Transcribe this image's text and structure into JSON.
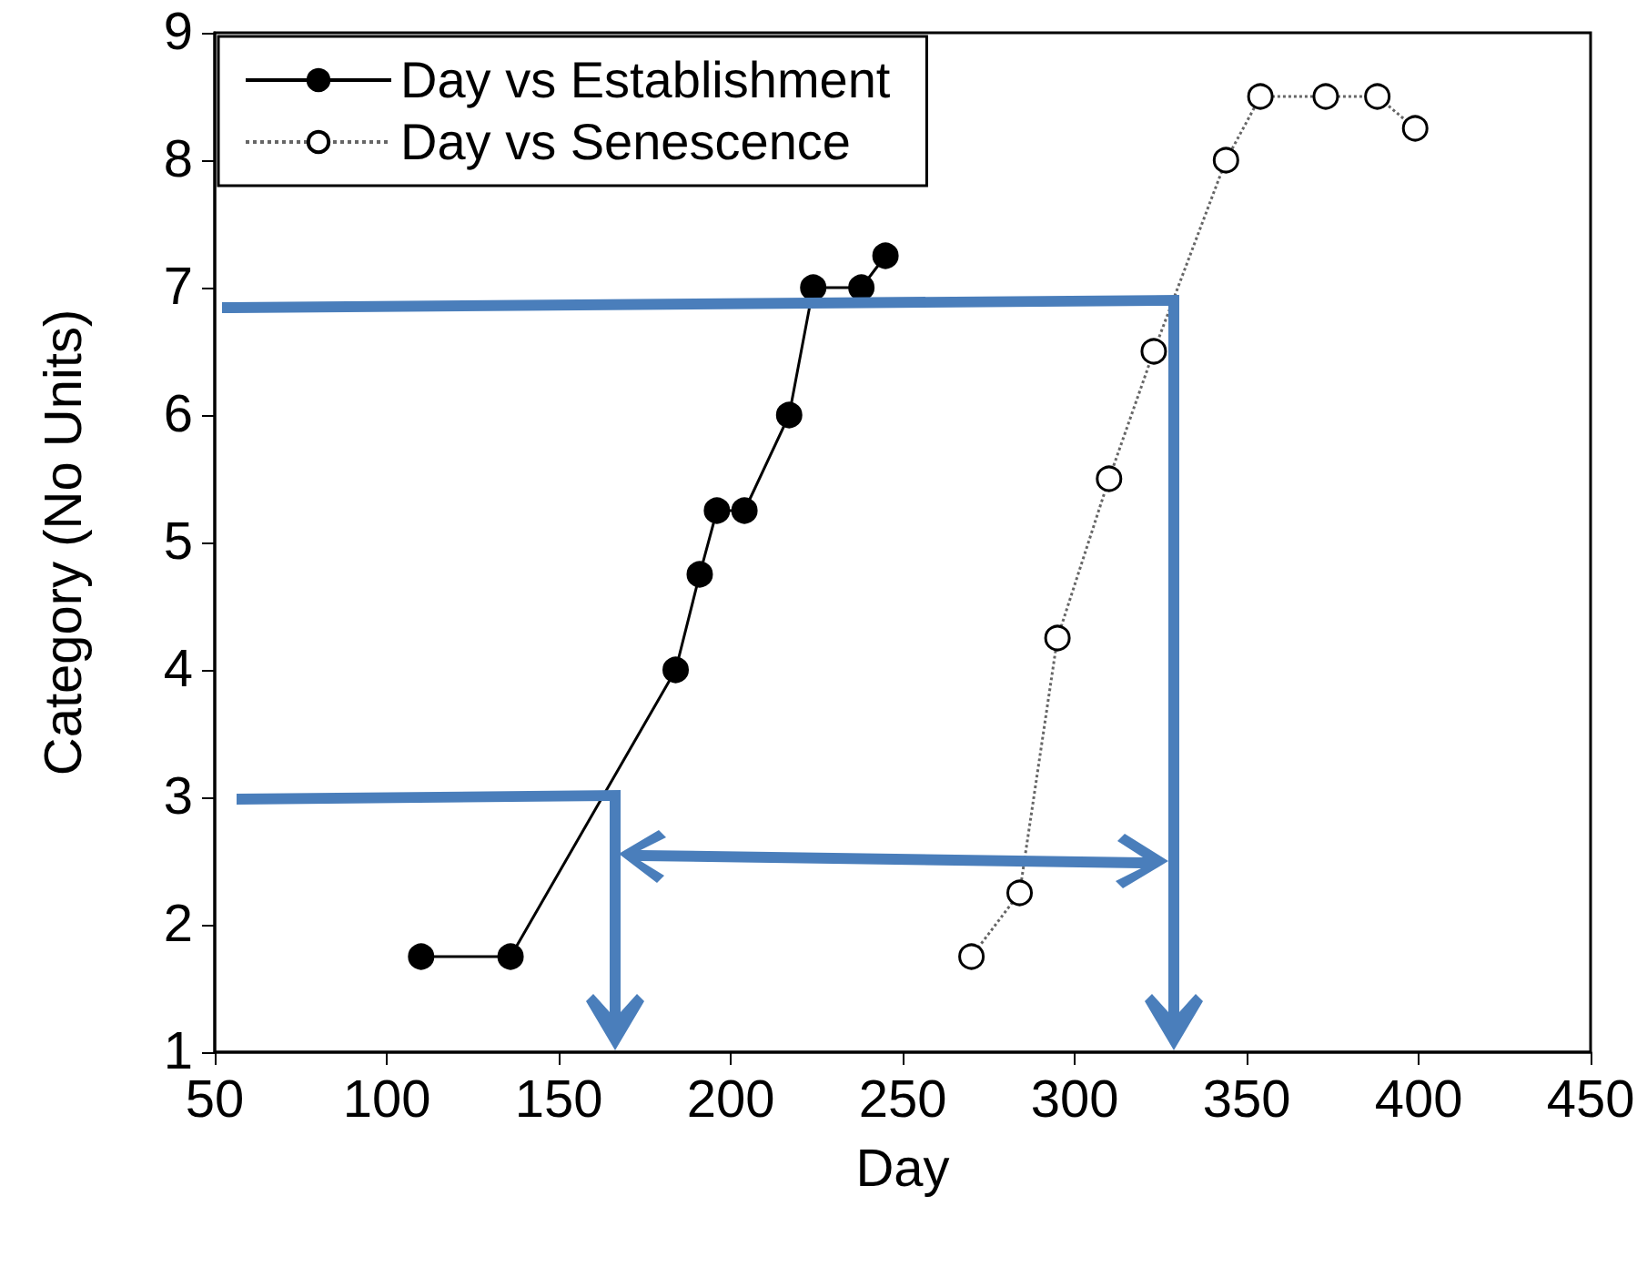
{
  "chart_data": {
    "type": "line",
    "xlabel": "Day",
    "ylabel": "Category (No Units)",
    "xlim": [
      50,
      450
    ],
    "xticks": [
      50,
      100,
      150,
      200,
      250,
      300,
      350,
      400,
      450
    ],
    "ylim": [
      1,
      9
    ],
    "yticks": [
      1,
      2,
      3,
      4,
      5,
      6,
      7,
      8,
      9
    ],
    "grid": false,
    "legend": "top left",
    "marker": "circle",
    "series": [
      {
        "name": "Day vs Establishment",
        "color": "#000000",
        "line_style": "solid",
        "x": [
          110,
          136,
          184,
          191,
          196,
          204,
          217,
          224,
          238,
          245
        ],
        "values": [
          1.75,
          1.75,
          4,
          4.75,
          5.25,
          5.25,
          6,
          7,
          7,
          7.25
        ]
      },
      {
        "name": "Day vs Senescence",
        "color": "#000000",
        "line_style": "dotted",
        "x": [
          270,
          284,
          295,
          310,
          323,
          344,
          354,
          373,
          388,
          399
        ],
        "values": [
          1.75,
          2.25,
          4.25,
          5.5,
          6.5,
          8,
          8.5,
          8.5,
          8.5,
          8.25
        ]
      }
    ]
  }
}
